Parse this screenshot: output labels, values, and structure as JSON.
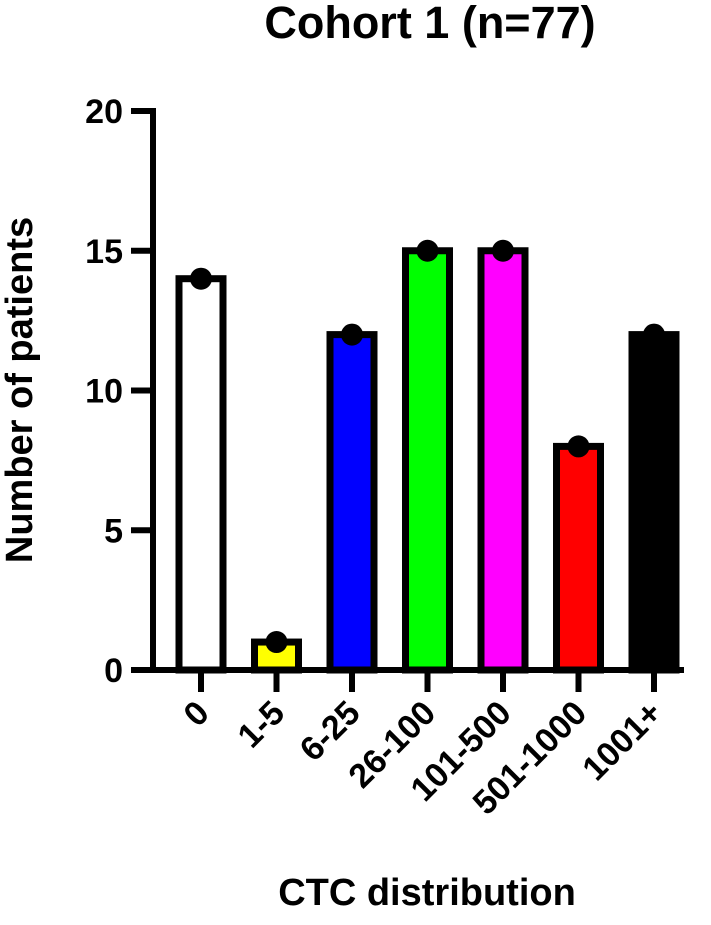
{
  "chart_data": {
    "type": "bar",
    "title": "Cohort 1 (n=77)",
    "xlabel": "CTC distribution",
    "ylabel": "Number of patients",
    "categories": [
      "0",
      "1-5",
      "6-25",
      "26-100",
      "101-500",
      "501-1000",
      "1001+"
    ],
    "values": [
      14,
      1,
      12,
      15,
      15,
      8,
      12
    ],
    "colors": [
      "#ffffff",
      "#ffff00",
      "#0000ff",
      "#00ff00",
      "#ff00ff",
      "#ff0000",
      "#000000"
    ],
    "ylim": [
      0,
      20
    ],
    "yticks": [
      "0",
      "5",
      "10",
      "15",
      "20"
    ],
    "grid": false,
    "point_markers": true
  }
}
